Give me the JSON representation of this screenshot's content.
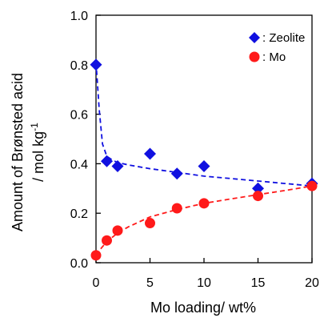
{
  "chart_data": {
    "type": "scatter",
    "xlabel": "Mo loading/ wt%",
    "ylabel_line1": "Amount of Brønsted acid",
    "ylabel_line2": "/ mol kg",
    "ylabel_sup": "-1",
    "xlim": [
      0,
      20
    ],
    "ylim": [
      0,
      1.0
    ],
    "x_ticks": [
      0,
      5,
      10,
      15,
      20
    ],
    "x_tick_labels": [
      "0",
      "5",
      "10",
      "15",
      "20"
    ],
    "y_ticks": [
      0,
      0.2,
      0.4,
      0.6,
      0.8,
      1.0
    ],
    "y_tick_labels": [
      "0.0",
      "0.2",
      "0.4",
      "0.6",
      "0.8",
      "1.0"
    ],
    "grid": false,
    "legend_position": "top-right",
    "series": [
      {
        "name": ": Zeolite",
        "marker": "diamond",
        "color": "#1010e0",
        "x": [
          0,
          1,
          2,
          5,
          7.5,
          10,
          15,
          20
        ],
        "y": [
          0.8,
          0.41,
          0.39,
          0.44,
          0.36,
          0.39,
          0.3,
          0.32
        ],
        "trend": {
          "x": [
            0,
            0.3,
            0.6,
            1,
            1.5,
            2,
            3,
            5,
            7.5,
            10,
            12.5,
            15,
            17.5,
            20
          ],
          "y": [
            0.81,
            0.62,
            0.48,
            0.43,
            0.415,
            0.405,
            0.395,
            0.38,
            0.365,
            0.35,
            0.34,
            0.33,
            0.32,
            0.31
          ]
        }
      },
      {
        "name": ": Mo",
        "marker": "circle",
        "color": "#ff1a1a",
        "x": [
          0,
          1,
          2,
          5,
          7.5,
          10,
          15,
          20
        ],
        "y": [
          0.03,
          0.09,
          0.13,
          0.16,
          0.22,
          0.24,
          0.27,
          0.31
        ],
        "trend": {
          "x": [
            0,
            0.5,
            1,
            2,
            3,
            5,
            7.5,
            10,
            12.5,
            15,
            17.5,
            20
          ],
          "y": [
            0.03,
            0.06,
            0.085,
            0.12,
            0.145,
            0.185,
            0.215,
            0.24,
            0.258,
            0.275,
            0.292,
            0.31
          ]
        }
      }
    ]
  }
}
